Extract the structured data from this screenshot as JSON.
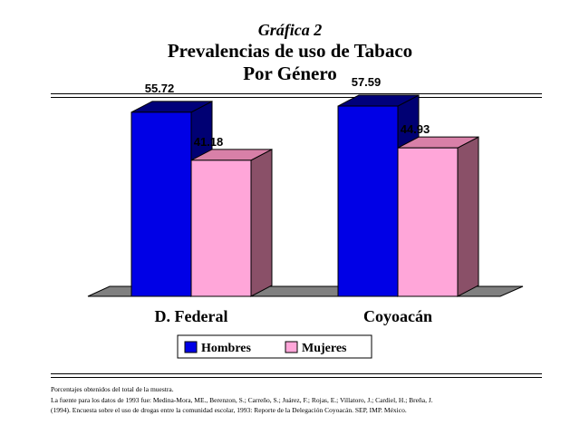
{
  "header": {
    "kicker": "Gráfica 2",
    "title_line1": "Prevalencias de uso de Tabaco",
    "title_line2": "Por Género"
  },
  "chart_data": {
    "type": "bar",
    "style": "3d",
    "categories": [
      "D. Federal",
      "Coyoacán"
    ],
    "series": [
      {
        "name": "Hombres",
        "color": "#0000e6",
        "values": [
          55.72,
          57.59
        ]
      },
      {
        "name": "Mujeres",
        "color": "#ffa6d9",
        "values": [
          41.18,
          44.93
        ]
      }
    ],
    "data_labels": [
      "55.72",
      "41.18",
      "57.59",
      "44.93"
    ],
    "ylim": [
      0,
      65
    ],
    "grid": false,
    "legend_position": "bottom-center"
  },
  "footnotes": [
    "Porcentajes obtenidos del total de la muestra.",
    "La fuente para los datos de 1993 fue: Medina-Mora, ME., Berenzon, S.; Carreño, S.; Juárez, F.; Rojas, E.; Villatoro, J.; Cardiel, H.; Breña, J.",
    "(1994). Encuesta sobre el uso de drogas entre la comunidad escolar, 1993: Reporte de la Delegación Coyoacán. SEP, IMP. México."
  ]
}
